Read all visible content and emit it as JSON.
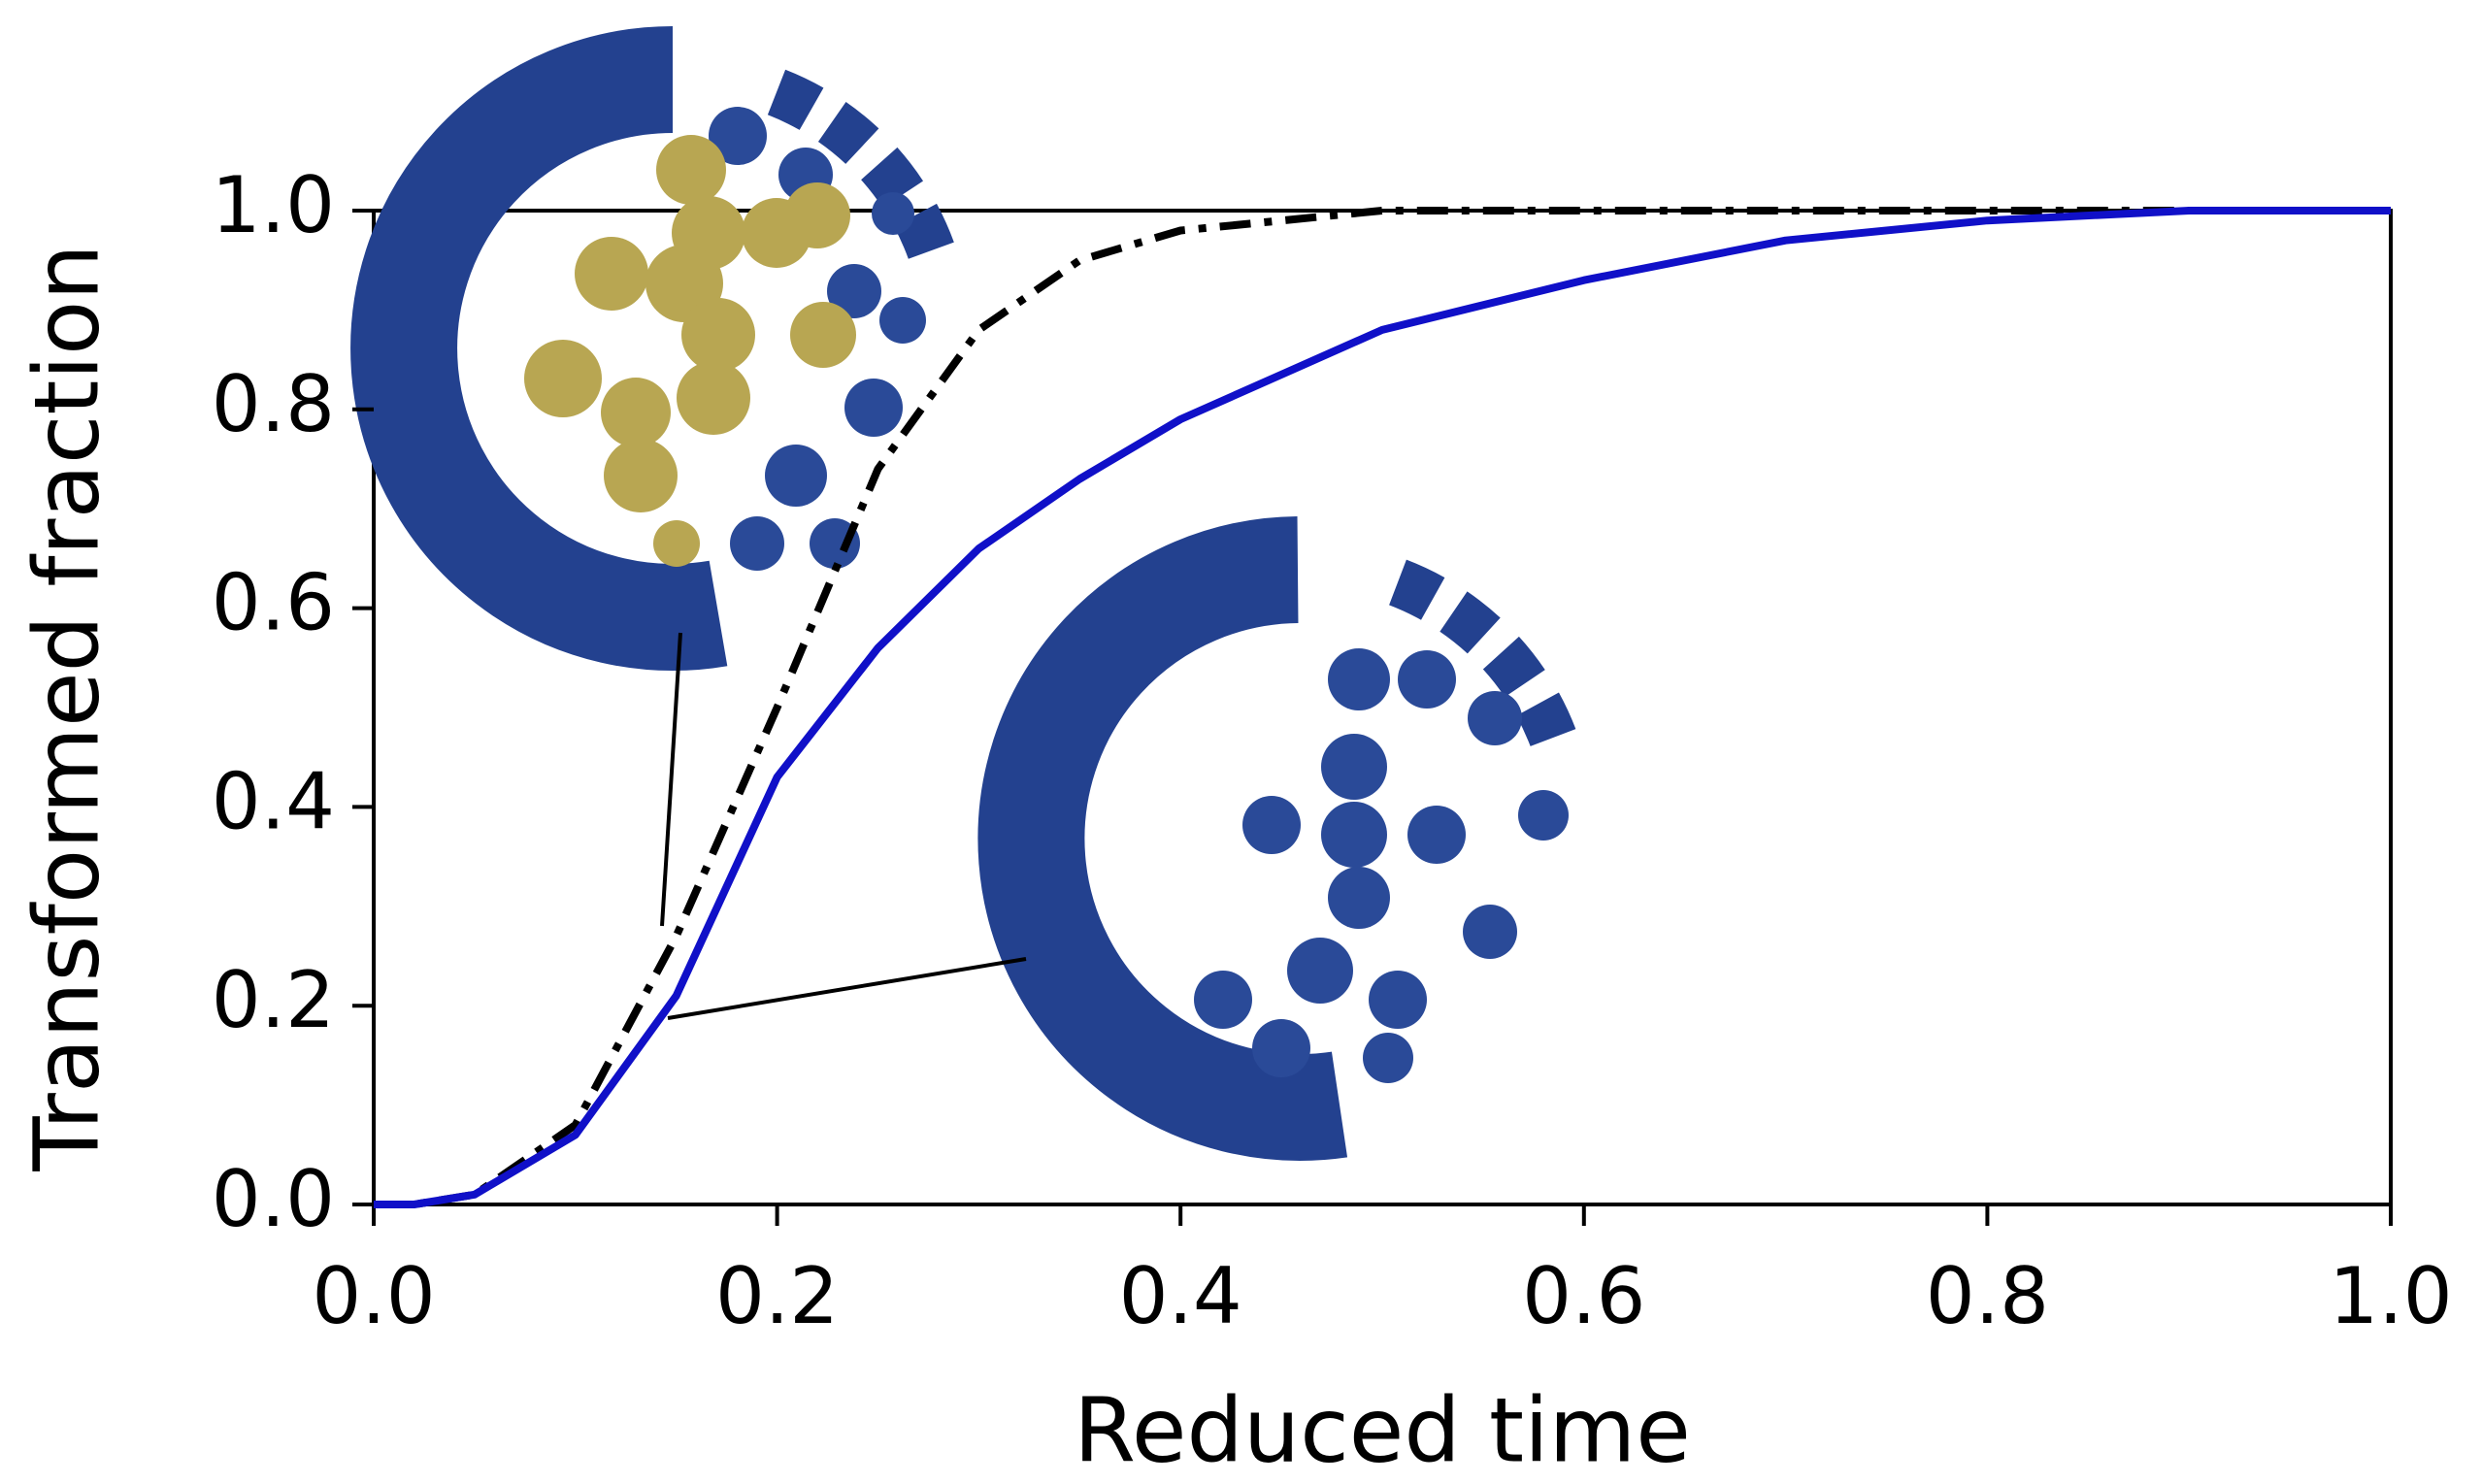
{
  "chart_data": {
    "type": "line",
    "xlabel": "Reduced time",
    "ylabel": "Transformed fraction",
    "x": [
      0,
      0.02,
      0.05,
      0.1,
      0.15,
      0.2,
      0.25,
      0.3,
      0.35,
      0.4,
      0.5,
      0.6,
      0.7,
      0.8,
      0.9,
      1.0
    ],
    "series": [
      {
        "color": "#000000",
        "dash": true,
        "values": [
          0,
          0,
          0.01,
          0.08,
          0.27,
          0.5,
          0.74,
          0.88,
          0.95,
          0.98,
          1,
          1,
          1,
          1,
          1,
          1
        ]
      },
      {
        "color": "#1010c8",
        "dash": false,
        "values": [
          0,
          0,
          0.01,
          0.07,
          0.21,
          0.43,
          0.56,
          0.66,
          0.73,
          0.79,
          0.88,
          0.93,
          0.97,
          0.99,
          1,
          1
        ]
      }
    ],
    "xlim": [
      0,
      1
    ],
    "ylim": [
      0,
      1
    ],
    "xticks": [
      {
        "value": 0,
        "label": "0.0"
      },
      0.2,
      0.4,
      0.6,
      0.8,
      {
        "value": 1,
        "label": "1.0"
      }
    ],
    "yticks": [
      {
        "value": 0,
        "label": "0.0"
      },
      0.2,
      0.4,
      0.6,
      0.8,
      {
        "value": 1,
        "label": "1.0"
      }
    ],
    "grid": false
  }
}
